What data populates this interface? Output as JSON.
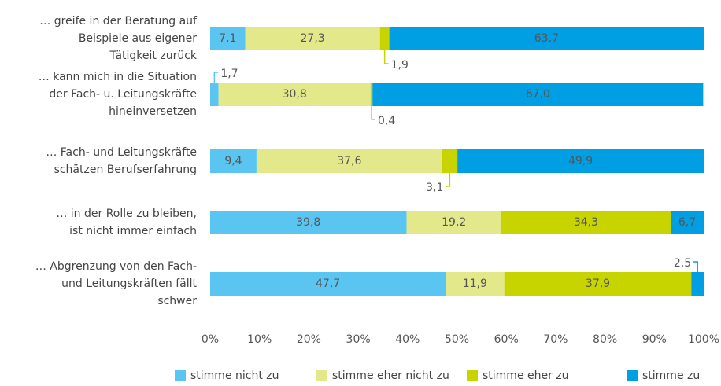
{
  "chart_data": {
    "type": "stacked-barh",
    "categories": [
      "… greife in der Beratung auf\nBeispiele aus eigener\nTätigkeit zurück",
      "… kann mich in die Situation\nder Fach- u. Leitungskräfte\nhineinversetzen",
      "… Fach- und Leitungskräfte\nschätzen Berufserfahrung",
      "… in der Rolle zu bleiben,\nist nicht immer einfach",
      "… Abgrenzung von den Fach-\nund Leitungskräften fällt\nschwer"
    ],
    "series": [
      {
        "name": "stimme nicht zu",
        "color": "#5bc5f2",
        "values": [
          7.1,
          1.7,
          9.4,
          39.8,
          47.7
        ],
        "value_labels": [
          "7,1",
          "1,7",
          "9,4",
          "39,8",
          "47,7"
        ]
      },
      {
        "name": "stimme eher nicht zu",
        "color": "#e3e98a",
        "values": [
          27.3,
          30.8,
          37.6,
          19.2,
          11.9
        ],
        "value_labels": [
          "27,3",
          "30,8",
          "37,6",
          "19,2",
          "11,9"
        ]
      },
      {
        "name": "stimme eher zu",
        "color": "#c8d400",
        "values": [
          1.9,
          0.4,
          3.1,
          34.3,
          37.9
        ],
        "value_labels": [
          "1,9",
          "0,4",
          "3,1",
          "34,3",
          "37,9"
        ]
      },
      {
        "name": "stimme zu",
        "color": "#009ee3",
        "values": [
          63.7,
          67.0,
          49.9,
          6.7,
          2.5
        ],
        "value_labels": [
          "63,7",
          "67,0",
          "49,9",
          "6,7",
          "2,5"
        ]
      }
    ],
    "xlim": [
      0,
      100
    ],
    "xticks": [
      {
        "value": 0,
        "label": "0%"
      },
      {
        "value": 10,
        "label": "10%"
      },
      {
        "value": 20,
        "label": "20%"
      },
      {
        "value": 30,
        "label": "30%"
      },
      {
        "value": 40,
        "label": "40%"
      },
      {
        "value": 50,
        "label": "50%"
      },
      {
        "value": 60,
        "label": "60%"
      },
      {
        "value": 70,
        "label": "70%"
      },
      {
        "value": 80,
        "label": "80%"
      },
      {
        "value": 90,
        "label": "90%"
      },
      {
        "value": 100,
        "label": "100%"
      }
    ],
    "grid": false,
    "legend": "bottom"
  }
}
